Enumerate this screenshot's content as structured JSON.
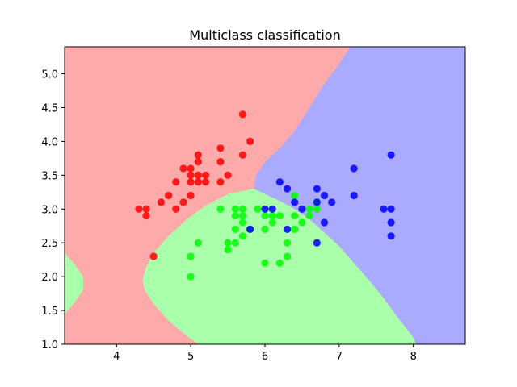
{
  "chart_data": {
    "type": "scatter",
    "title": "Multiclass classification",
    "xlabel": "",
    "ylabel": "",
    "xlim": [
      3.3,
      8.7
    ],
    "ylim": [
      1.0,
      5.4
    ],
    "x_ticks": [
      "4",
      "5",
      "6",
      "7",
      "8"
    ],
    "y_ticks": [
      "1.0",
      "1.5",
      "2.0",
      "2.5",
      "3.0",
      "3.5",
      "4.0",
      "4.5",
      "5.0"
    ],
    "grid": false,
    "legend": "none",
    "regions": [
      {
        "class": 0,
        "color": "#ffaaaa"
      },
      {
        "class": 1,
        "color": "#aaffaa"
      },
      {
        "class": 2,
        "color": "#aaaaff"
      }
    ],
    "series": [
      {
        "class": 0,
        "color": "#ff0000",
        "points": [
          [
            4.3,
            3.0
          ],
          [
            4.4,
            2.9
          ],
          [
            4.4,
            3.0
          ],
          [
            4.5,
            2.3
          ],
          [
            4.6,
            3.1
          ],
          [
            4.7,
            3.2
          ],
          [
            4.8,
            3.0
          ],
          [
            4.8,
            3.4
          ],
          [
            4.9,
            3.1
          ],
          [
            4.9,
            3.6
          ],
          [
            5.0,
            3.2
          ],
          [
            5.0,
            3.4
          ],
          [
            5.0,
            3.5
          ],
          [
            5.0,
            3.6
          ],
          [
            5.1,
            3.4
          ],
          [
            5.1,
            3.5
          ],
          [
            5.1,
            3.7
          ],
          [
            5.1,
            3.8
          ],
          [
            5.2,
            3.4
          ],
          [
            5.2,
            3.5
          ],
          [
            5.4,
            3.4
          ],
          [
            5.4,
            3.7
          ],
          [
            5.4,
            3.9
          ],
          [
            5.5,
            3.5
          ],
          [
            5.7,
            3.8
          ],
          [
            5.7,
            4.4
          ],
          [
            5.8,
            4.0
          ]
        ]
      },
      {
        "class": 1,
        "color": "#00ff00",
        "points": [
          [
            5.0,
            2.0
          ],
          [
            5.0,
            2.3
          ],
          [
            5.1,
            2.5
          ],
          [
            5.4,
            3.0
          ],
          [
            5.5,
            2.4
          ],
          [
            5.5,
            2.5
          ],
          [
            5.6,
            2.5
          ],
          [
            5.6,
            2.7
          ],
          [
            5.6,
            2.9
          ],
          [
            5.6,
            3.0
          ],
          [
            5.7,
            2.6
          ],
          [
            5.7,
            2.8
          ],
          [
            5.7,
            2.9
          ],
          [
            5.7,
            3.0
          ],
          [
            5.8,
            2.7
          ],
          [
            5.9,
            3.0
          ],
          [
            6.0,
            2.2
          ],
          [
            6.0,
            2.7
          ],
          [
            6.0,
            2.9
          ],
          [
            6.1,
            2.8
          ],
          [
            6.1,
            2.9
          ],
          [
            6.2,
            2.2
          ],
          [
            6.2,
            2.9
          ],
          [
            6.3,
            2.3
          ],
          [
            6.3,
            2.5
          ],
          [
            6.4,
            2.7
          ],
          [
            6.4,
            2.9
          ],
          [
            6.4,
            3.2
          ],
          [
            6.5,
            2.8
          ],
          [
            6.6,
            2.9
          ],
          [
            6.6,
            3.0
          ],
          [
            6.7,
            3.0
          ],
          [
            6.7,
            3.1
          ]
        ]
      },
      {
        "class": 2,
        "color": "#0000ff",
        "points": [
          [
            5.8,
            2.7
          ],
          [
            6.0,
            3.0
          ],
          [
            6.1,
            3.0
          ],
          [
            6.2,
            3.4
          ],
          [
            6.3,
            2.7
          ],
          [
            6.3,
            3.3
          ],
          [
            6.4,
            3.1
          ],
          [
            6.5,
            3.0
          ],
          [
            6.7,
            2.5
          ],
          [
            6.7,
            3.1
          ],
          [
            6.7,
            3.3
          ],
          [
            6.8,
            2.8
          ],
          [
            6.8,
            3.2
          ],
          [
            6.9,
            3.1
          ],
          [
            7.2,
            3.2
          ],
          [
            7.2,
            3.6
          ],
          [
            7.6,
            3.0
          ],
          [
            7.7,
            2.6
          ],
          [
            7.7,
            2.8
          ],
          [
            7.7,
            3.0
          ],
          [
            7.7,
            3.8
          ]
        ]
      }
    ]
  }
}
